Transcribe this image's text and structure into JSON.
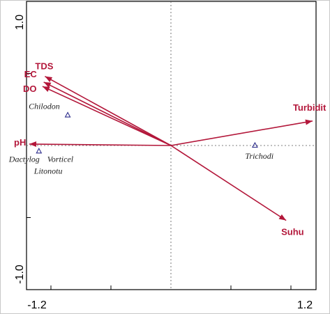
{
  "chart_data": {
    "type": "biplot",
    "xlim": [
      -1.2,
      1.2
    ],
    "ylim": [
      -1.0,
      1.0
    ],
    "x_tick_labels": [
      "-1.2",
      "1.2"
    ],
    "y_tick_labels": [
      "1.0",
      "-1.0"
    ],
    "reference_lines": "dotted at x = 0 and y = 0",
    "grid": false,
    "vectors": [
      {
        "name": "TDS",
        "x": -1.05,
        "y": 0.48
      },
      {
        "name": "EC",
        "x": -1.06,
        "y": 0.44
      },
      {
        "name": "DO",
        "x": -1.07,
        "y": 0.41
      },
      {
        "name": "pH",
        "x": -1.18,
        "y": 0.01
      },
      {
        "name": "Turbidit",
        "x": 1.18,
        "y": 0.17
      },
      {
        "name": "Suhu",
        "x": 0.96,
        "y": -0.52
      }
    ],
    "species": [
      {
        "name": "Chilodon",
        "x": -0.86,
        "y": 0.21
      },
      {
        "name": "Trichodi",
        "x": 0.7,
        "y": 0.0
      },
      {
        "name": "Dactylog",
        "x": -1.1,
        "y": -0.04
      },
      {
        "name": "Vorticel",
        "x": -1.1,
        "y": -0.04
      },
      {
        "name": "Litonotu",
        "x": -1.1,
        "y": -0.04
      }
    ],
    "colors": {
      "vectors": "#b3173a",
      "species_marker": "#2a2a8a",
      "species_label": "#222222"
    }
  }
}
